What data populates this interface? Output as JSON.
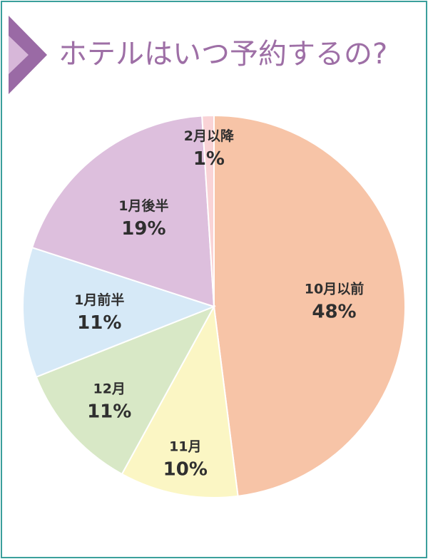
{
  "title": "ホテルはいつ予約するの?",
  "colors": {
    "border": "#3a9f9c",
    "title": "#9e6fa6",
    "arrow_dark": "#9a6aa5",
    "arrow_light": "#d7b7d9"
  },
  "chart_data": {
    "type": "pie",
    "title": "ホテルはいつ予約するの?",
    "start": "12 o'clock",
    "direction": "clockwise",
    "slices": [
      {
        "label": "10月以前",
        "value": 48,
        "value_label": "48%",
        "color": "#f7c4a7"
      },
      {
        "label": "11月",
        "value": 10,
        "value_label": "10%",
        "color": "#fbf6c4"
      },
      {
        "label": "12月",
        "value": 11,
        "value_label": "11%",
        "color": "#d8e8c6"
      },
      {
        "label": "1月前半",
        "value": 11,
        "value_label": "11%",
        "color": "#d6e9f7"
      },
      {
        "label": "1月後半",
        "value": 19,
        "value_label": "19%",
        "color": "#ddbfdd"
      },
      {
        "label": "2月以降",
        "value": 1,
        "value_label": "1%",
        "color": "#f9d3d6"
      }
    ]
  }
}
